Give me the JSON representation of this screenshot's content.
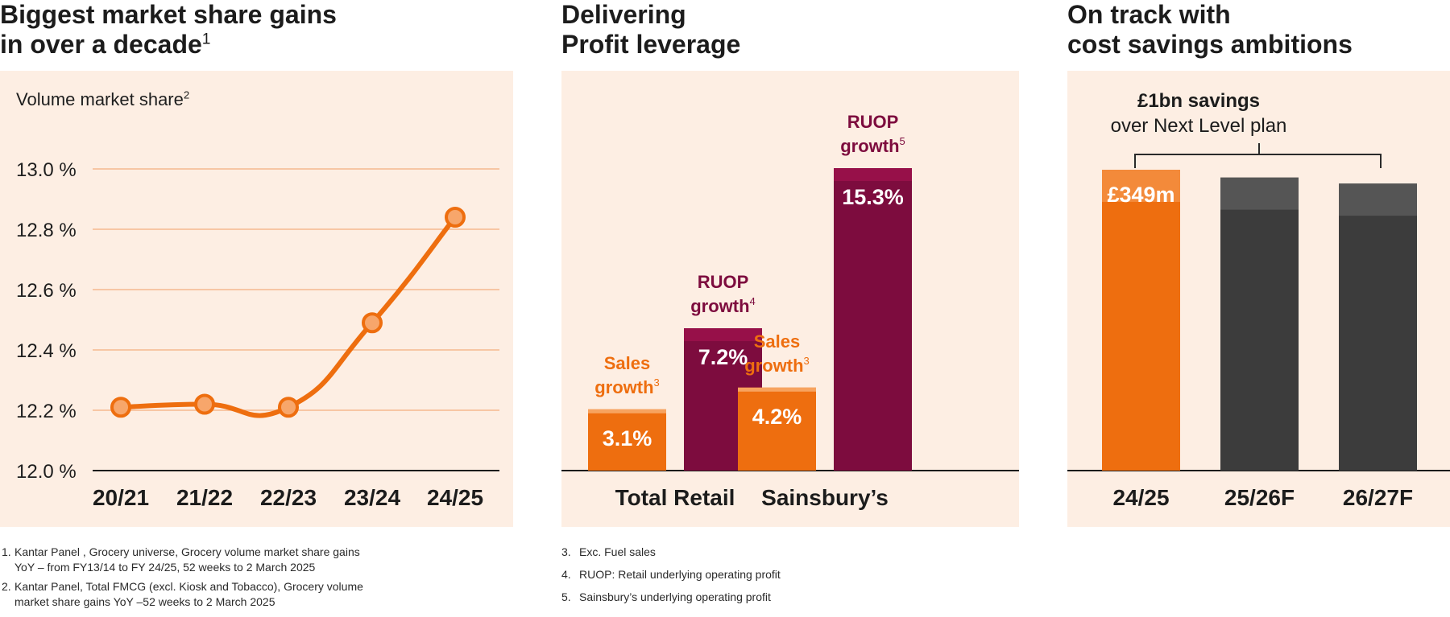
{
  "panel1": {
    "title_line1": "Biggest market share gains",
    "title_line2": "in over a decade",
    "title_sup": "1",
    "axis_title": "Volume market share",
    "axis_sup": "2"
  },
  "panel2": {
    "title_line1": "Delivering",
    "title_line2": "Profit leverage",
    "groups": [
      {
        "label": "Total Retail",
        "sales_label1": "Sales",
        "sales_label2": "growth",
        "sales_sup": "3",
        "ruop_label1": "RUOP",
        "ruop_label2": "growth",
        "ruop_sup": "4"
      },
      {
        "label": "Sainsbury’s",
        "sales_label1": "Sales",
        "sales_label2": "growth",
        "sales_sup": "3",
        "ruop_label1": "RUOP",
        "ruop_label2": "growth",
        "ruop_sup": "5"
      }
    ]
  },
  "panel3": {
    "title_line1": "On track with",
    "title_line2": "cost savings ambitions",
    "bracket_line1": "£1bn savings",
    "bracket_line2": "over Next Level plan"
  },
  "footnotes_left": [
    {
      "num": "1.",
      "line1": "Kantar Panel , Grocery universe, Grocery volume market share gains",
      "line2": "YoY – from FY13/14 to FY 24/25, 52 weeks to 2 March 2025"
    },
    {
      "num": "2.",
      "line1": "Kantar Panel, Total FMCG (excl. Kiosk and Tobacco), Grocery volume",
      "line2": "market share gains YoY –52 weeks to 2 March 2025"
    }
  ],
  "footnotes_right": [
    {
      "num": "3.",
      "text": "Exc. Fuel sales"
    },
    {
      "num": "4.",
      "text": "RUOP: Retail underlying operating profit"
    },
    {
      "num": "5.",
      "text": "Sainsbury’s underlying operating profit"
    }
  ],
  "colors": {
    "orange": "#ee6e0f",
    "maroon": "#7d0c3e",
    "grey": "#3c3c3c",
    "panel_bg": "#fdeee3",
    "gridline": "#f5b98f"
  },
  "chart_data": [
    {
      "type": "line",
      "title": "Biggest market share gains in over a decade",
      "ylabel": "Volume market share",
      "x": [
        "20/21",
        "21/22",
        "22/23",
        "23/24",
        "24/25"
      ],
      "values": [
        12.21,
        12.22,
        12.21,
        12.49,
        12.84
      ],
      "ylim": [
        12.0,
        13.0
      ],
      "yticks": [
        13.0,
        12.8,
        12.6,
        12.4,
        12.2,
        12.0
      ],
      "ytick_labels": [
        "13.0 %",
        "12.8 %",
        "12.6 %",
        "12.4 %",
        "12.2 %",
        "12.0 %"
      ],
      "grid": true
    },
    {
      "type": "bar",
      "title": "Delivering Profit leverage",
      "categories": [
        "Total Retail",
        "Sainsbury’s"
      ],
      "series": [
        {
          "name": "Sales growth",
          "values": [
            3.1,
            4.2
          ],
          "labels": [
            "3.1%",
            "4.2%"
          ]
        },
        {
          "name": "RUOP growth",
          "values": [
            7.2,
            15.3
          ],
          "labels": [
            "7.2%",
            "15.3%"
          ]
        }
      ],
      "ylim": [
        0,
        15.3
      ]
    },
    {
      "type": "bar",
      "title": "On track with cost savings ambitions",
      "categories": [
        "24/25",
        "25/26F",
        "26/27F"
      ],
      "values": [
        349,
        340,
        333
      ],
      "labels": [
        "£349m",
        "",
        ""
      ],
      "ylim": [
        0,
        349
      ]
    }
  ]
}
